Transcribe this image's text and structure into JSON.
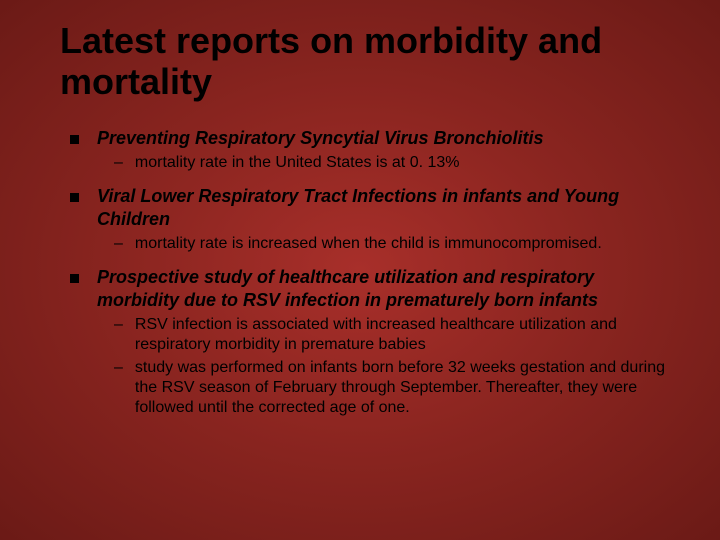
{
  "slide": {
    "title": "Latest reports on morbidity and mortality",
    "background_gradient": [
      "#a82f2a",
      "#8b2520",
      "#6b1a16"
    ],
    "title_fontsize": 36,
    "title_color": "#000000",
    "main_fontsize": 18,
    "sub_fontsize": 16,
    "bullet_color": "#000000",
    "sections": [
      {
        "heading": "Preventing Respiratory Syncytial Virus Bronchiolitis",
        "subs": [
          "mortality rate in the United States is at 0. 13%"
        ]
      },
      {
        "heading": "Viral Lower Respiratory Tract Infections in infants and Young Children",
        "subs": [
          "mortality rate is increased when the child is immunocompromised."
        ]
      },
      {
        "heading": "Prospective study of healthcare utilization and respiratory morbidity due to RSV infection in prematurely born infants",
        "subs": [
          "RSV infection is associated with increased healthcare utilization and respiratory morbidity in premature babies",
          "study was performed on infants born before 32 weeks gestation and during the RSV season of February through September. Thereafter, they were followed until the corrected age of one."
        ]
      }
    ]
  }
}
